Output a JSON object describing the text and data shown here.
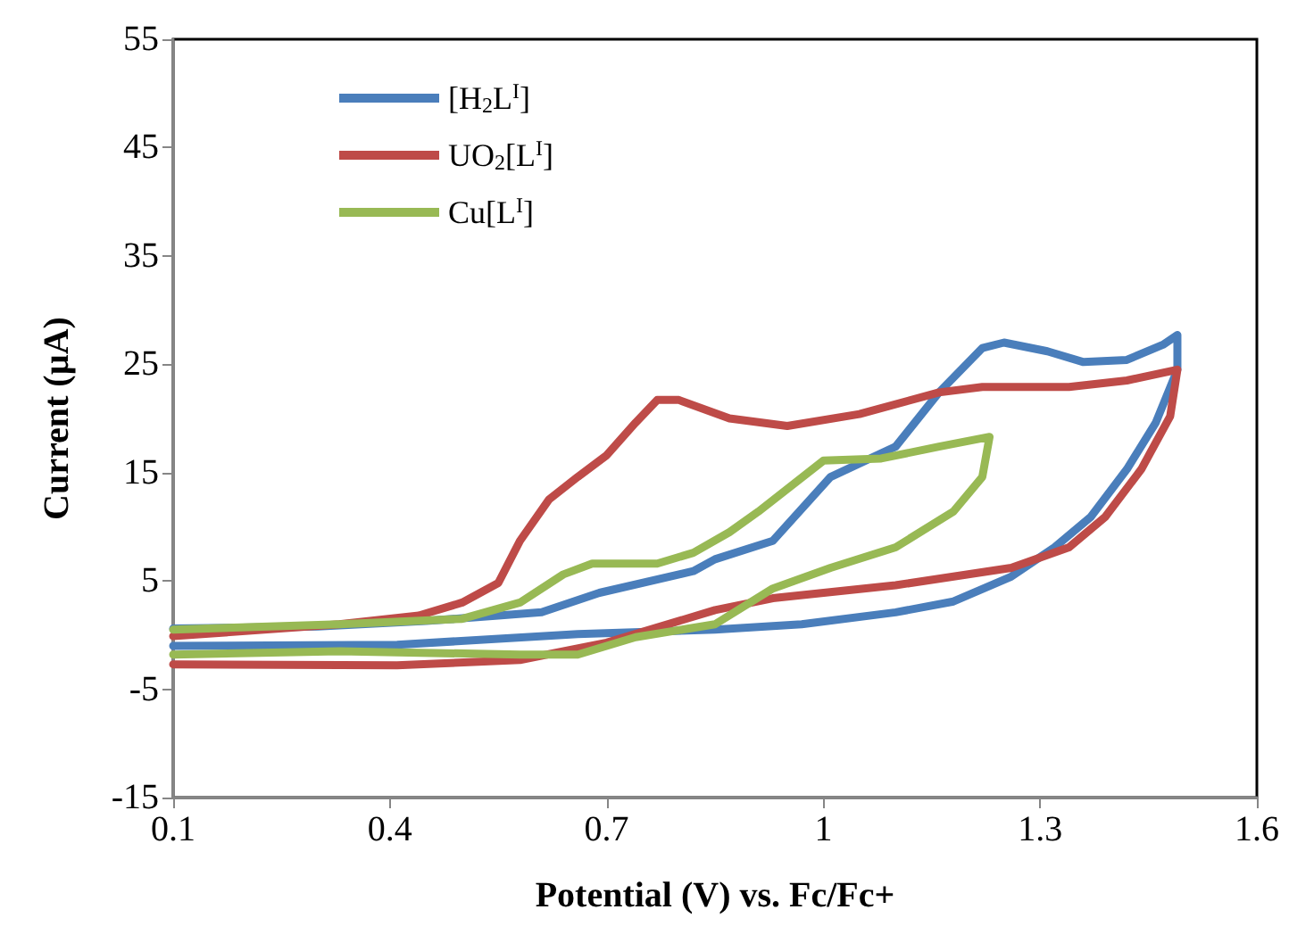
{
  "chart_data": {
    "type": "line",
    "xlabel": "Potential (V) vs. Fc/Fc+",
    "ylabel": "Current (µA)",
    "xlim": [
      0.1,
      1.6
    ],
    "xticks": [
      0.1,
      0.4,
      0.7,
      1,
      1.3,
      1.6
    ],
    "ylim": [
      -15,
      55
    ],
    "yticks": [
      -15,
      -5,
      5,
      15,
      25,
      35,
      45,
      55
    ],
    "grid": false,
    "legend": "top left",
    "marker": "none",
    "line_style": "solid",
    "series": [
      {
        "name": "[H$_{2}$L$^{I}$]",
        "color": "#4a7ebb",
        "x": [
          0.1,
          0.3,
          0.45,
          0.55,
          0.61,
          0.69,
          0.82,
          0.85,
          0.93,
          1.01,
          1.1,
          1.16,
          1.22,
          1.25,
          1.31,
          1.36,
          1.42,
          1.47,
          1.49,
          1.49,
          1.46,
          1.42,
          1.37,
          1.32,
          1.26,
          1.18,
          1.1,
          0.97,
          0.85,
          0.66,
          0.41,
          0.1
        ],
        "values": [
          0.6,
          0.8,
          1.3,
          1.8,
          2.1,
          3.9,
          5.9,
          7,
          8.7,
          14.6,
          17.4,
          22.4,
          26.5,
          27,
          26.2,
          25.2,
          25.4,
          26.8,
          27.7,
          24.5,
          19.6,
          15.3,
          10.9,
          8.1,
          5.4,
          3.1,
          2.1,
          1,
          0.5,
          0.1,
          -0.9,
          -1
        ]
      },
      {
        "name": "UO$_{2}$[L$^{I}$]",
        "color": "#be4b48",
        "x": [
          0.1,
          0.33,
          0.44,
          0.5,
          0.55,
          0.58,
          0.62,
          0.66,
          0.7,
          0.74,
          0.77,
          0.8,
          0.87,
          0.95,
          1.05,
          1.16,
          1.22,
          1.34,
          1.42,
          1.49,
          1.48,
          1.44,
          1.39,
          1.34,
          1.26,
          1.1,
          0.93,
          0.85,
          0.7,
          0.58,
          0.41,
          0.1
        ],
        "values": [
          -0.1,
          1,
          1.8,
          3,
          4.8,
          8.7,
          12.5,
          14.6,
          16.6,
          19.6,
          21.7,
          21.7,
          20,
          19.3,
          20.4,
          22.4,
          22.9,
          22.9,
          23.5,
          24.5,
          20.2,
          15.3,
          10.9,
          8.1,
          6.2,
          4.6,
          3.4,
          2.3,
          -0.7,
          -2.3,
          -2.8,
          -2.7
        ]
      },
      {
        "name": "Cu[L$^{I}$]",
        "color": "#98b954",
        "x": [
          0.1,
          0.33,
          0.5,
          0.58,
          0.64,
          0.68,
          0.77,
          0.82,
          0.87,
          0.91,
          1,
          1.08,
          1.16,
          1.23,
          1.22,
          1.18,
          1.1,
          1.01,
          0.93,
          0.85,
          0.74,
          0.66,
          0.58,
          0.33,
          0.1
        ],
        "values": [
          0.5,
          1,
          1.5,
          3,
          5.6,
          6.6,
          6.6,
          7.6,
          9.5,
          11.4,
          16.1,
          16.3,
          17.4,
          18.3,
          14.6,
          11.4,
          8.1,
          6.2,
          4.3,
          1,
          -0.2,
          -1.8,
          -1.8,
          -1.5,
          -1.8
        ]
      }
    ]
  }
}
